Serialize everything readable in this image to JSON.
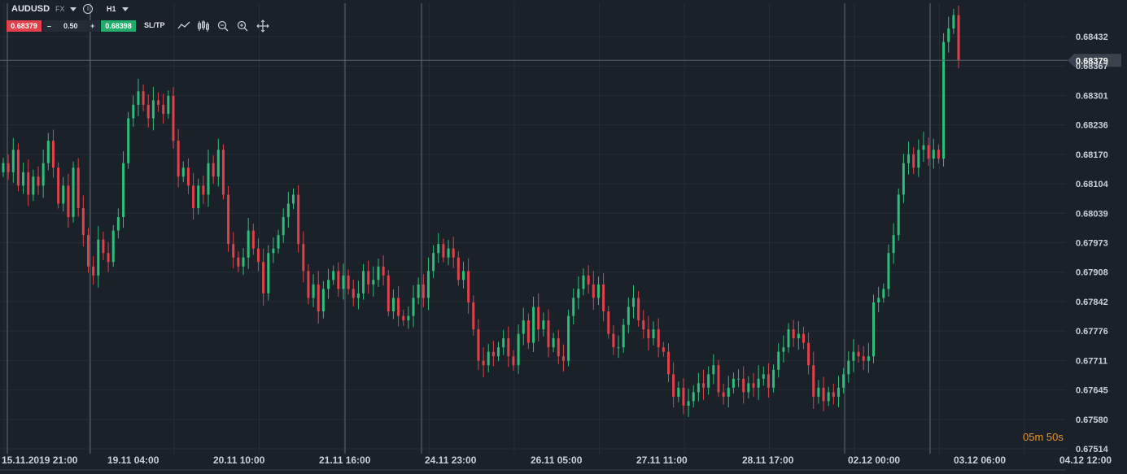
{
  "toolbar": {
    "symbol": "AUDUSD",
    "market": "FX",
    "timeframe": "H1",
    "bid": "0.68379",
    "lot_minus": "–",
    "lot": "0.50",
    "lot_plus": "+",
    "ask": "0.68398",
    "sltp": "SL/TP",
    "tools": [
      "line-chart-icon",
      "candles-icon",
      "zoom-out-icon",
      "zoom-in-icon",
      "crosshair-icon"
    ]
  },
  "timer": "05m 50s",
  "colors": {
    "background": "#1b2129",
    "up": "#2ebd7a",
    "down": "#e0414b",
    "bid": "#e0414b",
    "ask": "#22ac6c",
    "timer": "#e8962e"
  },
  "chart_data": {
    "type": "candlestick",
    "timeframe": "H1",
    "ylim": [
      0.67514,
      0.6847
    ],
    "ytick_labels": [
      "0.68432",
      "0.68367",
      "0.68301",
      "0.68236",
      "0.68170",
      "0.68104",
      "0.68039",
      "0.67973",
      "0.67908",
      "0.67842",
      "0.67776",
      "0.67711",
      "0.67645",
      "0.67580",
      "0.67514"
    ],
    "xtick_labels": [
      "15.11.2019 21:00",
      "19.11 04:00",
      "20.11 10:00",
      "21.11 16:00",
      "24.11 23:00",
      "26.11 05:00",
      "27.11 11:00",
      "28.11 17:00",
      "02.12 00:00",
      "03.12 06:00",
      "04.12 12:00"
    ],
    "current_price": 0.68379,
    "current_price_label": "0.68379",
    "grid": true,
    "closes": [
      0.6815,
      0.6813,
      0.6818,
      0.681,
      0.6813,
      0.6808,
      0.6812,
      0.681,
      0.6815,
      0.682,
      0.6814,
      0.6806,
      0.681,
      0.6803,
      0.6814,
      0.6805,
      0.6799,
      0.6792,
      0.679,
      0.6798,
      0.6795,
      0.6793,
      0.68,
      0.6803,
      0.6815,
      0.6825,
      0.6828,
      0.6831,
      0.6828,
      0.6825,
      0.6829,
      0.6828,
      0.6826,
      0.683,
      0.682,
      0.6812,
      0.6814,
      0.681,
      0.6805,
      0.681,
      0.6808,
      0.6815,
      0.6812,
      0.6818,
      0.6808,
      0.6797,
      0.6794,
      0.6792,
      0.6794,
      0.68,
      0.6796,
      0.6793,
      0.6786,
      0.6795,
      0.6796,
      0.6799,
      0.6803,
      0.6806,
      0.6808,
      0.6797,
      0.6791,
      0.6785,
      0.6788,
      0.6782,
      0.6787,
      0.6789,
      0.6791,
      0.6787,
      0.679,
      0.6787,
      0.6785,
      0.6786,
      0.6791,
      0.6788,
      0.6789,
      0.6792,
      0.679,
      0.6782,
      0.6785,
      0.6781,
      0.678,
      0.6781,
      0.6785,
      0.6788,
      0.6785,
      0.6791,
      0.6795,
      0.6797,
      0.6794,
      0.6796,
      0.6794,
      0.6789,
      0.6791,
      0.6784,
      0.6778,
      0.6771,
      0.677,
      0.6773,
      0.6772,
      0.6774,
      0.6776,
      0.6772,
      0.677,
      0.6777,
      0.678,
      0.6775,
      0.6783,
      0.6778,
      0.678,
      0.6774,
      0.6776,
      0.6772,
      0.6771,
      0.6781,
      0.6785,
      0.6787,
      0.679,
      0.6788,
      0.6785,
      0.6788,
      0.6782,
      0.6777,
      0.6774,
      0.6774,
      0.6779,
      0.6783,
      0.6785,
      0.678,
      0.6778,
      0.6776,
      0.6778,
      0.6774,
      0.6773,
      0.6768,
      0.6763,
      0.6765,
      0.6761,
      0.6762,
      0.6764,
      0.6766,
      0.6765,
      0.6768,
      0.677,
      0.6764,
      0.6763,
      0.6765,
      0.6767,
      0.6767,
      0.6764,
      0.6766,
      0.6765,
      0.6767,
      0.6768,
      0.6765,
      0.6769,
      0.6773,
      0.6774,
      0.6778,
      0.6776,
      0.6777,
      0.6775,
      0.677,
      0.6763,
      0.6765,
      0.6762,
      0.6764,
      0.6763,
      0.6765,
      0.6768,
      0.6771,
      0.6773,
      0.6772,
      0.6771,
      0.6772,
      0.6784,
      0.6785,
      0.6787,
      0.6795,
      0.6799,
      0.6808,
      0.6815,
      0.6817,
      0.6814,
      0.6818,
      0.6819,
      0.6816,
      0.6818,
      0.6816,
      0.6842,
      0.6845,
      0.6848,
      0.6838
    ]
  }
}
